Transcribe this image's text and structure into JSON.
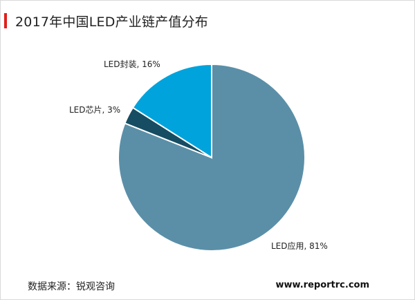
{
  "header": {
    "title": "2017年中国LED产业链产值分布"
  },
  "chart_data": {
    "type": "pie",
    "title": "2017年中国LED产业链产值分布",
    "slices": [
      {
        "name": "LED应用",
        "value": 81,
        "label": "LED应用, 81%",
        "color": "#5b8fa8"
      },
      {
        "name": "LED芯片",
        "value": 3,
        "label": "LED芯片, 3%",
        "color": "#164d63"
      },
      {
        "name": "LED封装",
        "value": 16,
        "label": "LED封装, 16%",
        "color": "#00a3dc"
      }
    ],
    "start_angle_deg": 0,
    "direction": "clockwise",
    "border_color": "#ffffff"
  },
  "footer": {
    "source": "数据来源：锐观咨询",
    "website": "www.reportrc.com"
  }
}
